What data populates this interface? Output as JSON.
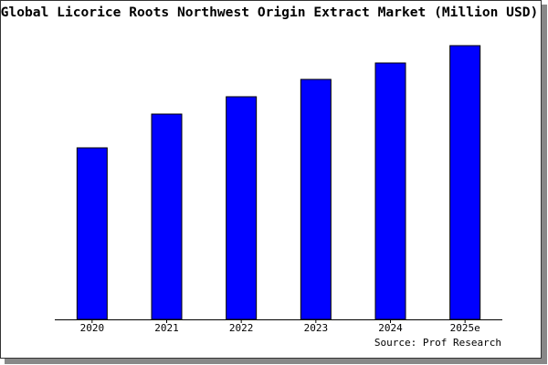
{
  "chart_data": {
    "type": "bar",
    "title": "Global Licorice Roots Northwest Origin Extract Market (Million USD)",
    "categories": [
      "2020",
      "2021",
      "2022",
      "2023",
      "2024",
      "2025e"
    ],
    "values": [
      188,
      225,
      244,
      263,
      281,
      300
    ],
    "color": "#0000ff",
    "ylim": [
      0,
      302
    ],
    "source": "Source: Prof Research"
  }
}
